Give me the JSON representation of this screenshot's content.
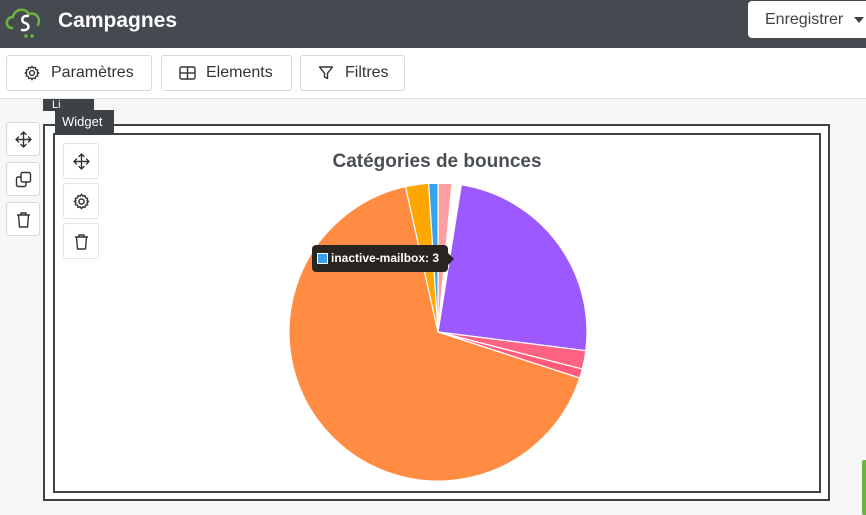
{
  "header": {
    "title": "Campagnes",
    "save_button": "Enregistrer",
    "brand_color": "#6cb33f"
  },
  "toolbar": {
    "settings_label": "Paramètres",
    "elements_label": "Elements",
    "filters_label": "Filtres"
  },
  "canvas": {
    "top_tag": "Li",
    "widget_tag": "Widget"
  },
  "side_tools": [
    "move-icon",
    "copy-icon",
    "trash-icon"
  ],
  "widget_tools": [
    "move-icon",
    "gear-icon",
    "trash-icon"
  ],
  "chart_data": {
    "type": "pie",
    "title": "Catégories de bounces",
    "slices": [
      {
        "label": "",
        "value": 1.5,
        "color": "#ff9f9f"
      },
      {
        "label": "",
        "value": 1.0,
        "color": "#ffffff"
      },
      {
        "label": "",
        "value": 24.5,
        "color": "#9b59ff"
      },
      {
        "label": "",
        "value": 2.0,
        "color": "#ff6384"
      },
      {
        "label": "",
        "value": 1.0,
        "color": "#ff5c7c"
      },
      {
        "label": "",
        "value": 66.5,
        "color": "#ff8c42"
      },
      {
        "label": "",
        "value": 2.5,
        "color": "#ffa600"
      },
      {
        "label": "inactive-mailbox",
        "value": 1.0,
        "color": "#36a2eb"
      }
    ],
    "tooltip": {
      "label": "inactive-mailbox",
      "value": 3,
      "text": "inactive-mailbox: 3",
      "color": "#36a2eb"
    }
  }
}
